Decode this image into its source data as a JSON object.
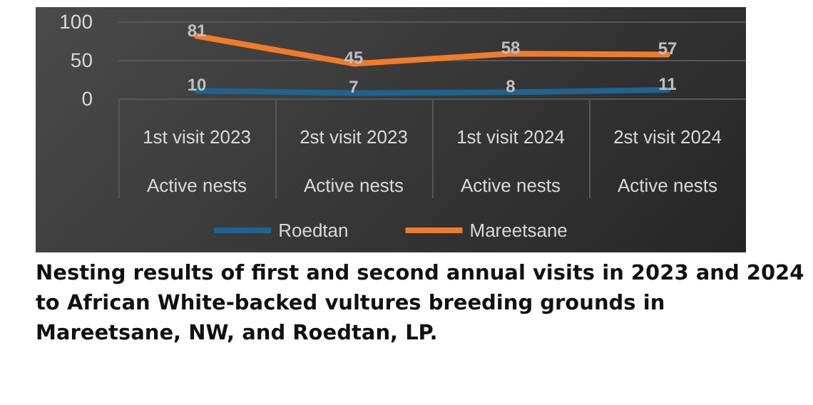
{
  "chart_data": {
    "type": "line",
    "title": "Nesting results of first and second annual visits in 2023 and 2024 to African White-backed vultures breeding grounds in Mareetsane, NW, and Roedtan, LP.",
    "categories": [
      "1st visit 2023\nActive nests",
      "2st visit 2023\nActive nests",
      "1st visit 2024\nActive nests",
      "2st visit 2024\nActive nests"
    ],
    "series": [
      {
        "name": "Roedtan",
        "color": "#1f6391",
        "values": [
          10,
          7,
          8,
          11
        ]
      },
      {
        "name": "Mareetsane",
        "color": "#f07c2a",
        "values": [
          81,
          45,
          58,
          57
        ]
      }
    ],
    "ylim": [
      0,
      100
    ],
    "yticks": [
      0,
      50,
      100
    ],
    "grid": "y",
    "legend": "bottom",
    "data_labels": true,
    "marker": "none"
  }
}
